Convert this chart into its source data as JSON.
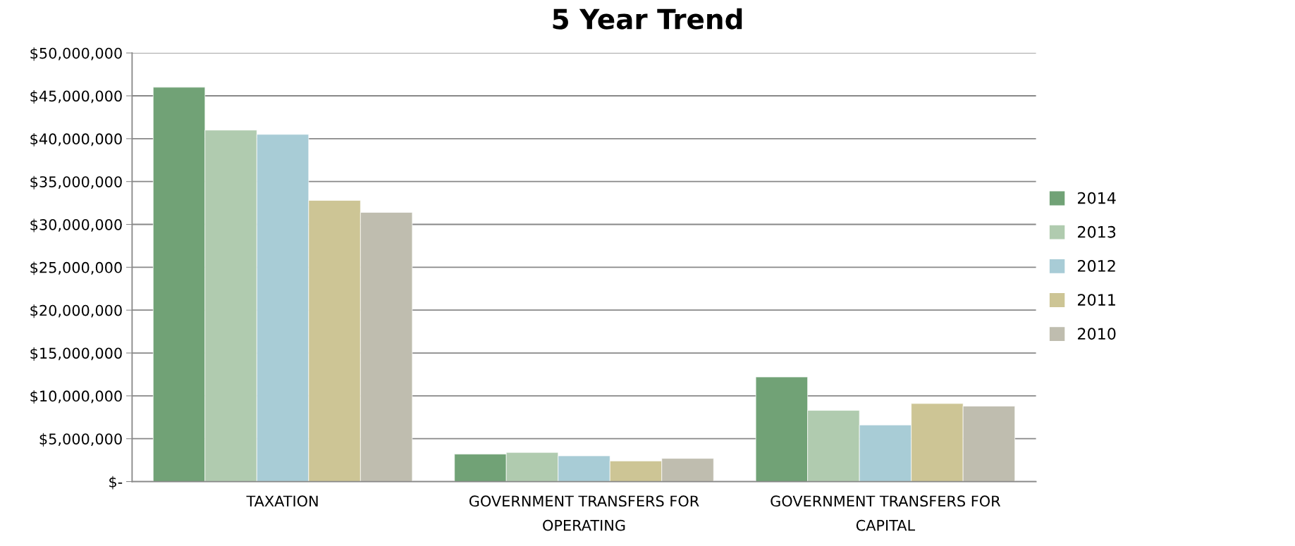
{
  "chart_data": {
    "type": "bar",
    "title": "5 Year Trend",
    "categories": [
      "TAXATION",
      "GOVERNMENT TRANSFERS FOR\nOPERATING",
      "GOVERNMENT TRANSFERS FOR\nCAPITAL"
    ],
    "series": [
      {
        "name": "2014",
        "color": "#71a276",
        "values": [
          46000000,
          3200000,
          12200000
        ]
      },
      {
        "name": "2013",
        "color": "#b0cbaf",
        "values": [
          41000000,
          3400000,
          8300000
        ]
      },
      {
        "name": "2012",
        "color": "#a8ccd6",
        "values": [
          40500000,
          3000000,
          6600000
        ]
      },
      {
        "name": "2011",
        "color": "#cdc595",
        "values": [
          32800000,
          2400000,
          9100000
        ]
      },
      {
        "name": "2010",
        "color": "#bfbdaf",
        "values": [
          31400000,
          2700000,
          8800000
        ]
      }
    ],
    "ylim": [
      0,
      50000000
    ],
    "yticks": [
      {
        "value": 0,
        "label": "$-"
      },
      {
        "value": 5000000,
        "label": "$5,000,000"
      },
      {
        "value": 10000000,
        "label": "$10,000,000"
      },
      {
        "value": 15000000,
        "label": "$15,000,000"
      },
      {
        "value": 20000000,
        "label": "$20,000,000"
      },
      {
        "value": 25000000,
        "label": "$25,000,000"
      },
      {
        "value": 30000000,
        "label": "$30,000,000"
      },
      {
        "value": 35000000,
        "label": "$35,000,000"
      },
      {
        "value": 40000000,
        "label": "$40,000,000"
      },
      {
        "value": 45000000,
        "label": "$45,000,000"
      },
      {
        "value": 50000000,
        "label": "$50,000,000"
      }
    ],
    "grid": "y",
    "legend": "right"
  }
}
